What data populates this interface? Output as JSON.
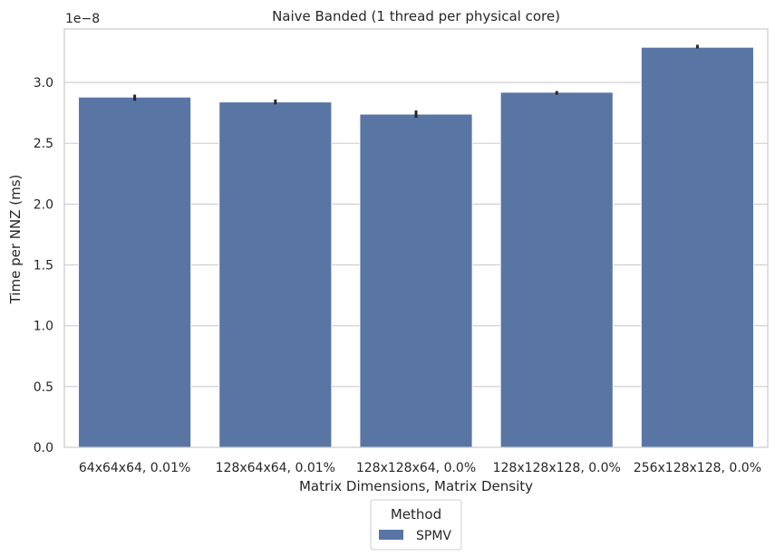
{
  "chart_data": {
    "type": "bar",
    "title": "Naive Banded (1 thread per physical core)",
    "xlabel": "Matrix Dimensions, Matrix Density",
    "ylabel": "Time per NNZ (ms)",
    "y_offset_label": "1e−8",
    "categories": [
      "64x64x64, 0.01%",
      "128x64x64, 0.01%",
      "128x128x64, 0.0%",
      "128x128x128, 0.0%",
      "256x128x128, 0.0%"
    ],
    "series": [
      {
        "name": "SPMV",
        "values": [
          2.88,
          2.84,
          2.74,
          2.92,
          3.29
        ],
        "error_low": [
          2.85,
          2.82,
          2.71,
          2.9,
          3.28
        ],
        "error_high": [
          2.9,
          2.86,
          2.77,
          2.93,
          3.31
        ]
      }
    ],
    "ylim": [
      0,
      3.44
    ],
    "yticks": [
      "0.0",
      "0.5",
      "1.0",
      "1.5",
      "2.0",
      "2.5",
      "3.0"
    ],
    "ytick_values": [
      0,
      0.5,
      1.0,
      1.5,
      2.0,
      2.5,
      3.0
    ],
    "grid": "horizontal",
    "legend": {
      "title": "Method",
      "placement": "below"
    },
    "colors": {
      "bar": "#5975a4",
      "bar_edge": "#ffffff",
      "error_bar": "#262626",
      "grid": "#cccccc",
      "frame": "#cccccc",
      "text": "#262626"
    }
  }
}
